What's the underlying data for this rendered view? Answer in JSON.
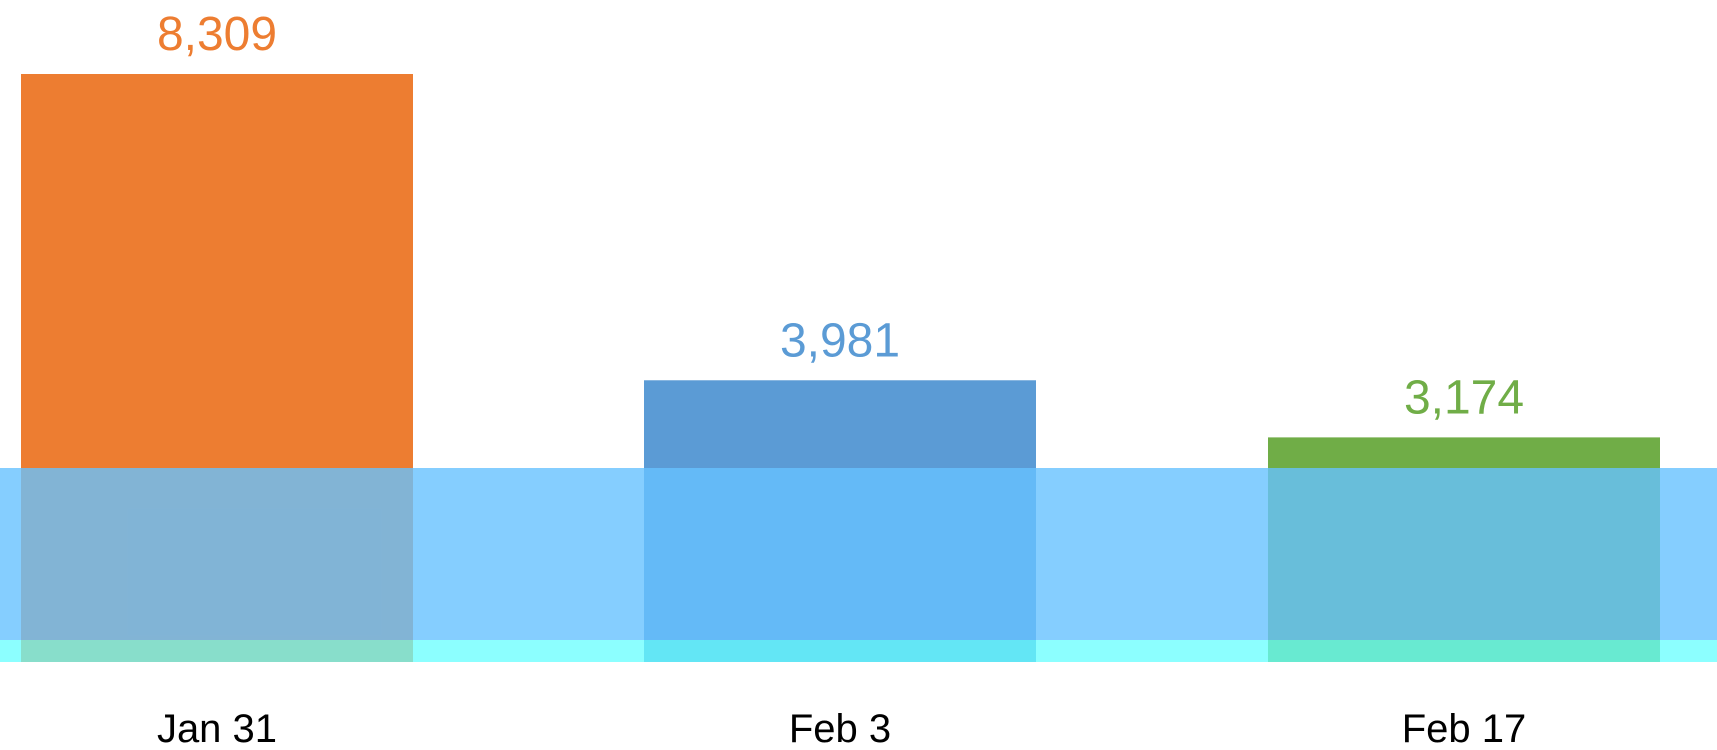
{
  "chart_data": {
    "type": "bar",
    "categories": [
      "Jan 31",
      "Feb 3",
      "Feb 17"
    ],
    "values": [
      8309,
      3981,
      3174
    ],
    "value_labels": [
      "8,309",
      "3,981",
      "3,174"
    ],
    "colors": [
      "#ED7D31",
      "#5B9BD5",
      "#70AD47"
    ],
    "ylim": [
      0,
      8309
    ],
    "grid": false,
    "legend": "none"
  },
  "overlay": {
    "band_color": "#66c2ff",
    "strip_color": "#66ffff"
  }
}
